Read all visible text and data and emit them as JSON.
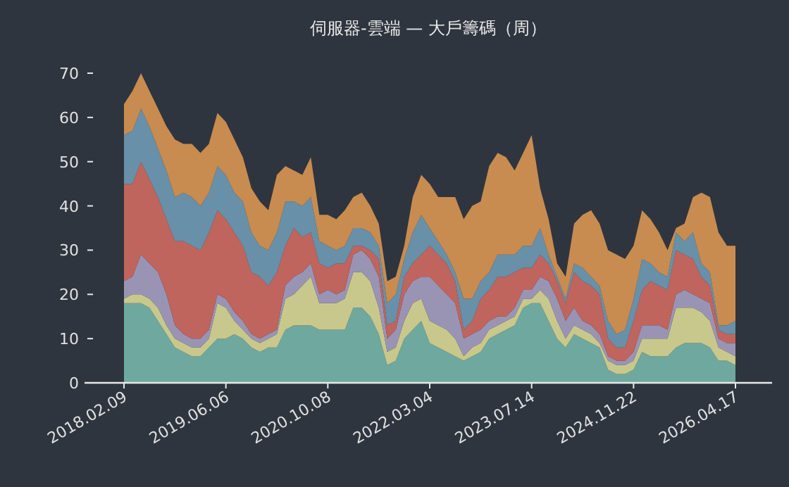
{
  "chart_data": {
    "type": "area",
    "stacked": true,
    "title": "伺服器-雲端 — 大戶籌碼（周）",
    "categories": [
      "2018.02.09",
      null,
      null,
      null,
      null,
      null,
      null,
      null,
      null,
      null,
      null,
      null,
      "2019.06.06",
      null,
      null,
      null,
      null,
      null,
      null,
      null,
      null,
      null,
      null,
      null,
      "2020.10.08",
      null,
      null,
      null,
      null,
      null,
      null,
      null,
      null,
      null,
      null,
      null,
      "2022.03.04",
      null,
      null,
      null,
      null,
      null,
      null,
      null,
      null,
      null,
      null,
      null,
      "2023.07.14",
      null,
      null,
      null,
      null,
      null,
      null,
      null,
      null,
      null,
      null,
      null,
      "2024.11.22",
      null,
      null,
      null,
      null,
      null,
      null,
      null,
      null,
      null,
      null,
      null,
      "2026.04.17"
    ],
    "ylim": [
      0,
      70
    ],
    "yticks": [
      0,
      10,
      20,
      30,
      40,
      50,
      60,
      70
    ],
    "grid": false,
    "series": [
      {
        "color": "#6fa89e",
        "values": [
          18,
          18,
          18,
          17,
          14,
          11,
          8,
          7,
          6,
          6,
          8,
          10,
          10,
          11,
          10,
          8,
          7,
          8,
          8,
          12,
          13,
          13,
          13,
          12,
          12,
          12,
          12,
          17,
          17,
          15,
          11,
          4,
          5,
          10,
          12,
          14,
          9,
          8,
          7,
          6,
          5,
          6,
          7,
          10,
          11,
          12,
          13,
          17,
          18,
          18,
          14,
          10,
          8,
          11,
          10,
          9,
          8,
          3,
          2,
          2,
          3,
          7,
          6,
          6,
          6,
          8,
          9,
          9,
          9,
          8,
          5,
          5,
          4
        ]
      },
      {
        "color": "#c8c88c",
        "values": [
          1,
          2,
          2,
          2,
          3,
          2,
          2,
          2,
          2,
          2,
          2,
          8,
          7,
          3,
          2,
          2,
          2,
          2,
          3,
          7,
          7,
          9,
          11,
          6,
          6,
          6,
          7,
          8,
          8,
          8,
          6,
          3,
          3,
          4,
          6,
          5,
          5,
          5,
          5,
          4,
          1,
          2,
          2,
          2,
          2,
          2,
          2,
          2,
          1,
          3,
          5,
          4,
          2,
          2,
          2,
          2,
          1,
          2,
          2,
          2,
          2,
          3,
          4,
          4,
          4,
          9,
          8,
          8,
          7,
          6,
          3,
          2,
          2
        ]
      },
      {
        "color": "#9a94b4",
        "values": [
          4,
          4,
          9,
          8,
          8,
          7,
          3,
          2,
          2,
          2,
          2,
          2,
          2,
          2,
          2,
          1,
          1,
          1,
          1,
          3,
          4,
          3,
          3,
          2,
          3,
          2,
          2,
          4,
          5,
          5,
          7,
          3,
          4,
          6,
          5,
          5,
          10,
          9,
          8,
          8,
          4,
          3,
          3,
          2,
          2,
          1,
          2,
          2,
          2,
          3,
          4,
          5,
          4,
          4,
          2,
          2,
          2,
          1,
          1,
          1,
          2,
          3,
          3,
          3,
          2,
          3,
          4,
          3,
          3,
          4,
          2,
          2,
          3
        ]
      },
      {
        "color": "#c0645e",
        "values": [
          22,
          21,
          21,
          19,
          17,
          17,
          19,
          21,
          21,
          20,
          22,
          19,
          18,
          18,
          17,
          14,
          14,
          11,
          13,
          9,
          11,
          8,
          7,
          7,
          5,
          7,
          6,
          2,
          1,
          2,
          4,
          3,
          2,
          4,
          4,
          5,
          7,
          7,
          7,
          5,
          2,
          3,
          7,
          7,
          9,
          9,
          8,
          5,
          5,
          5,
          4,
          4,
          4,
          8,
          9,
          9,
          9,
          4,
          3,
          3,
          7,
          8,
          10,
          9,
          9,
          10,
          8,
          8,
          5,
          4,
          2,
          2,
          2
        ]
      },
      {
        "color": "#6890a8",
        "values": [
          11,
          12,
          12,
          12,
          11,
          11,
          10,
          11,
          11,
          10,
          9,
          10,
          10,
          9,
          10,
          9,
          7,
          8,
          9,
          10,
          6,
          7,
          8,
          5,
          5,
          3,
          4,
          4,
          4,
          4,
          3,
          5,
          6,
          4,
          7,
          9,
          4,
          3,
          2,
          2,
          7,
          5,
          4,
          4,
          5,
          5,
          4,
          5,
          5,
          6,
          2,
          1,
          1,
          2,
          3,
          2,
          2,
          4,
          3,
          4,
          5,
          7,
          4,
          3,
          3,
          4,
          3,
          6,
          3,
          3,
          1,
          2,
          3
        ]
      },
      {
        "color": "#c88c50",
        "values": [
          7,
          9,
          8,
          8,
          9,
          10,
          13,
          11,
          12,
          12,
          11,
          12,
          12,
          12,
          10,
          10,
          10,
          9,
          13,
          8,
          7,
          7,
          9,
          6,
          7,
          7,
          8,
          7,
          8,
          6,
          5,
          5,
          4,
          3,
          8,
          9,
          10,
          10,
          13,
          17,
          18,
          21,
          18,
          24,
          23,
          22,
          19,
          21,
          25,
          9,
          8,
          3,
          5,
          9,
          12,
          15,
          14,
          16,
          18,
          16,
          12,
          11,
          10,
          9,
          6,
          1,
          4,
          8,
          16,
          17,
          21,
          18,
          17
        ]
      }
    ]
  }
}
